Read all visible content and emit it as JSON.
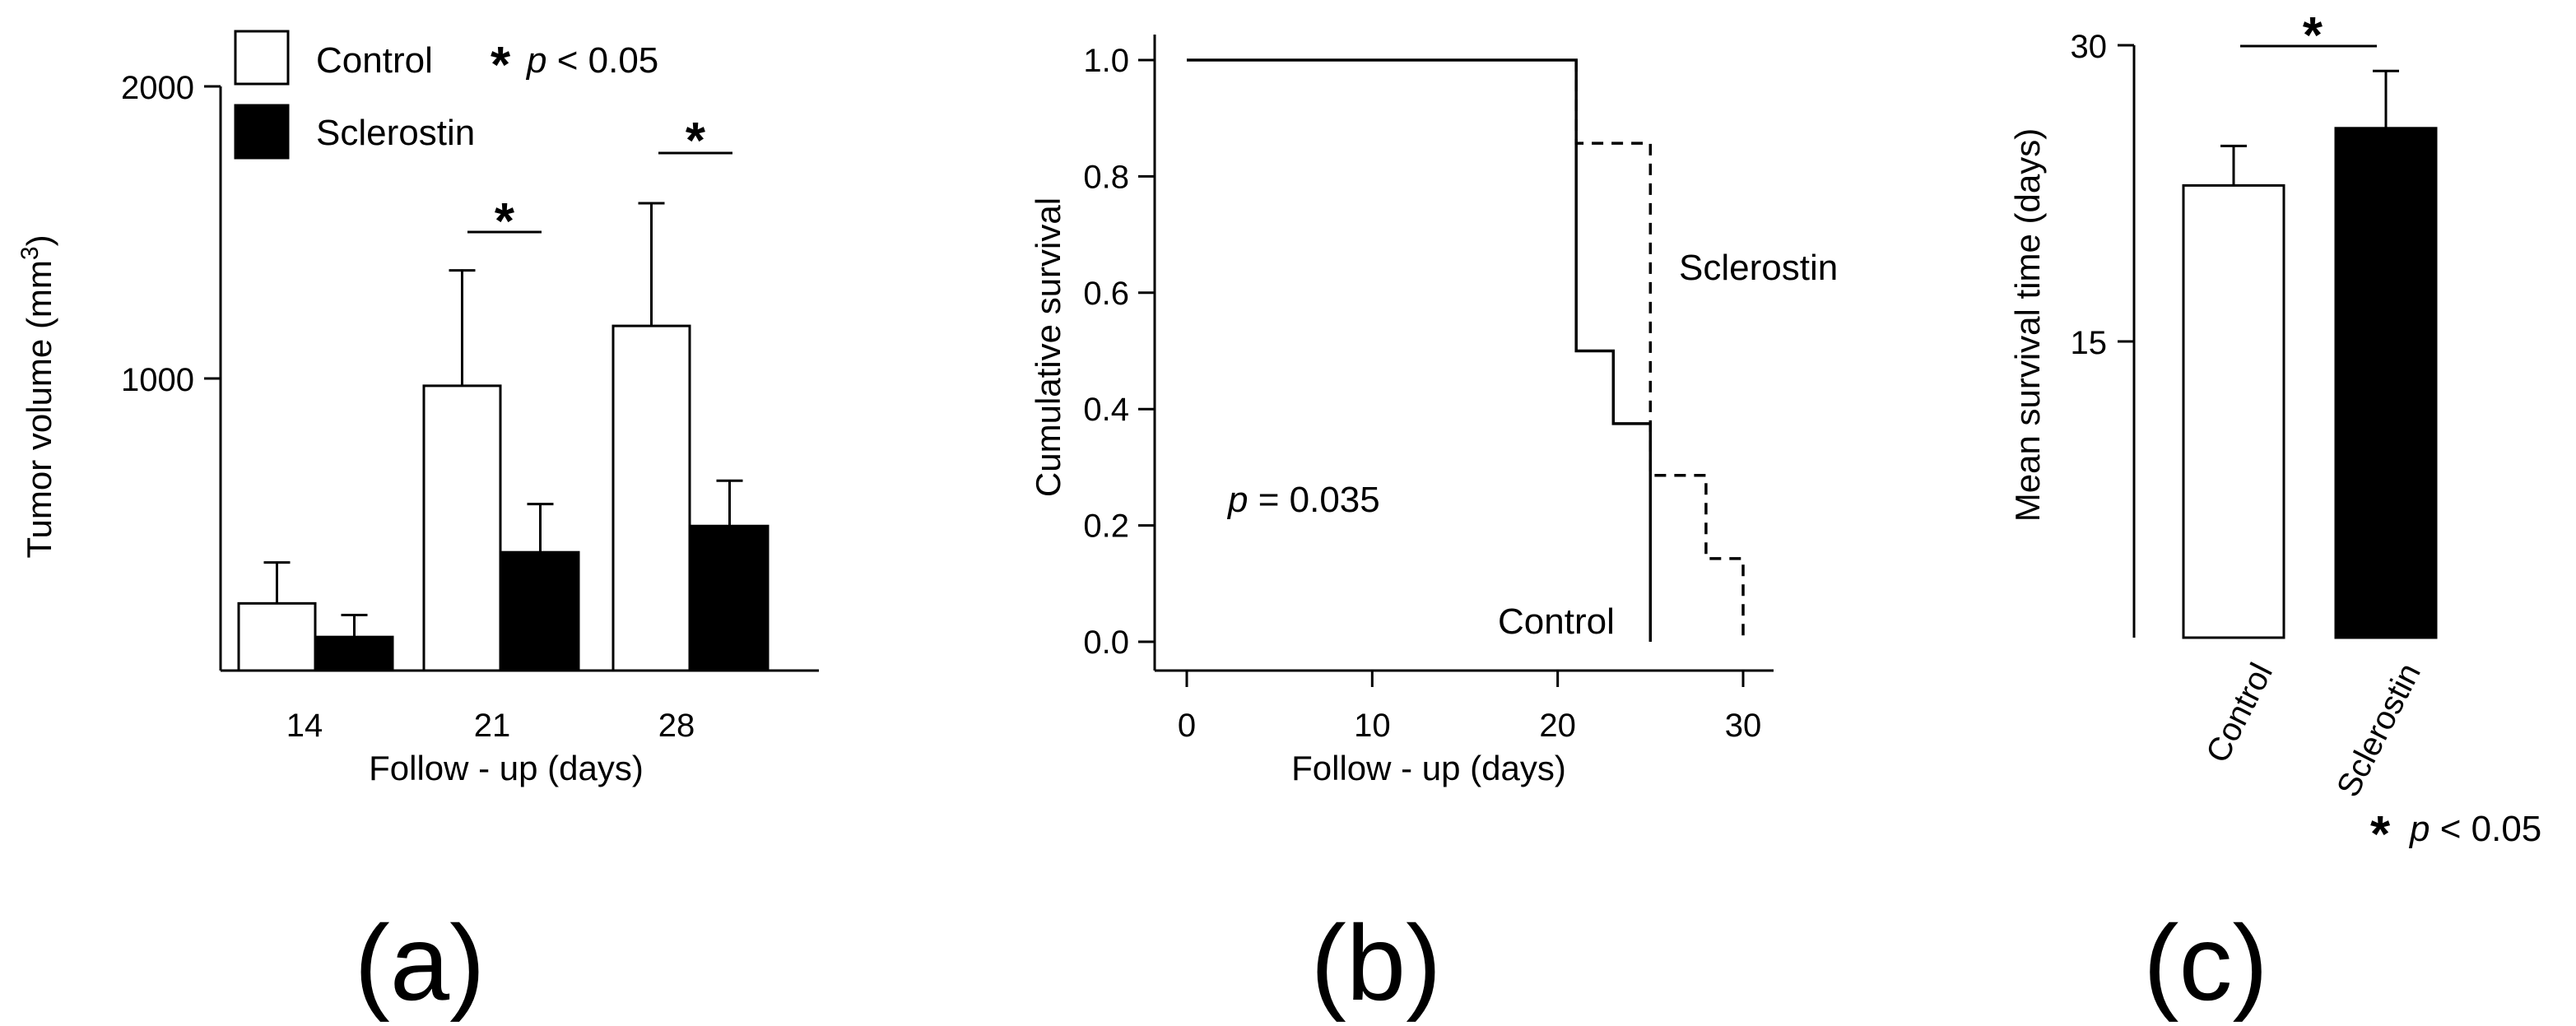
{
  "chart_data": [
    {
      "type": "bar",
      "panel_label": "(a)",
      "title": "",
      "xlabel": "Follow - up (days)",
      "ylabel": "Tumor volume (mm",
      "ylabel_sup": "3",
      "ylabel_close": ")",
      "ylim": [
        0,
        2000
      ],
      "yticks": [
        "1000",
        "2000"
      ],
      "categories": [
        "14",
        "21",
        "28"
      ],
      "series": [
        {
          "name": "Control",
          "color": "#ffffff",
          "values": [
            230,
            975,
            1180
          ],
          "errors": [
            140,
            395,
            420
          ]
        },
        {
          "name": "Sclerostin",
          "color": "#000000",
          "values": [
            115,
            405,
            495
          ],
          "errors": [
            75,
            165,
            155
          ]
        }
      ],
      "significance": {
        "star": "*",
        "groups": [
          "21",
          "28"
        ]
      },
      "legend": {
        "position": "top",
        "note_star": "*",
        "note_p": "p",
        "note_rest": " < 0.05"
      }
    },
    {
      "type": "line",
      "panel_label": "(b)",
      "title": "",
      "xlabel": "Follow - up (days)",
      "ylabel": "Cumulative survival",
      "xlim": [
        0,
        30
      ],
      "ylim": [
        0,
        1.0
      ],
      "xticks": [
        "0",
        "10",
        "20",
        "30"
      ],
      "yticks": [
        "0.0",
        "0.2",
        "0.4",
        "0.6",
        "0.8",
        "1.0"
      ],
      "series": [
        {
          "name": "Control",
          "style": "solid",
          "x": [
            0,
            21,
            21,
            23,
            23,
            25,
            25
          ],
          "y": [
            1.0,
            1.0,
            0.5,
            0.5,
            0.375,
            0.375,
            0.0
          ]
        },
        {
          "name": "Sclerostin",
          "style": "dashed",
          "x": [
            21,
            21,
            25,
            25,
            28,
            28,
            30,
            30
          ],
          "y": [
            1.0,
            0.857,
            0.857,
            0.286,
            0.286,
            0.143,
            0.143,
            0.0
          ]
        }
      ],
      "annotation": {
        "p_symbol": "p",
        "p_rest": " = 0.035"
      }
    },
    {
      "type": "bar",
      "panel_label": "(c)",
      "title": "",
      "xlabel": "",
      "ylabel": "Mean survival time (days)",
      "ylim": [
        0,
        30
      ],
      "yticks": [
        "15",
        "30"
      ],
      "categories": [
        "Control",
        "Sclerostin"
      ],
      "colors": [
        "#ffffff",
        "#000000"
      ],
      "values": [
        22.9,
        25.8
      ],
      "errors": [
        2.0,
        2.9
      ],
      "significance": {
        "star": "*"
      },
      "note": {
        "star": "*",
        "p": "p",
        "rest": " < 0.05"
      }
    }
  ]
}
